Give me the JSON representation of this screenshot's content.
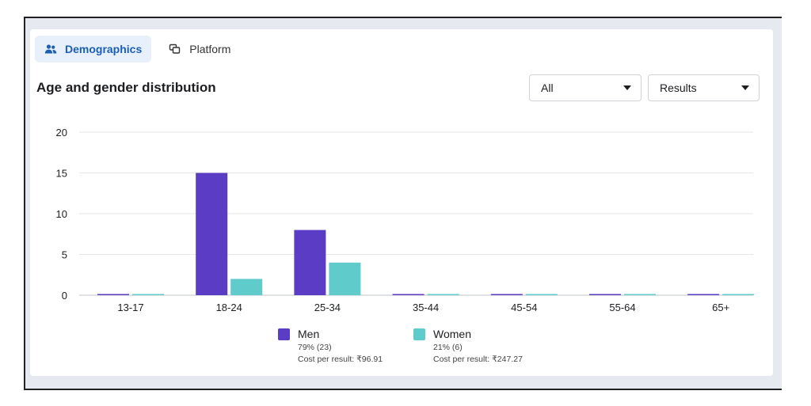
{
  "tabs": [
    {
      "label": "Demographics",
      "icon": "people-icon",
      "active": true
    },
    {
      "label": "Platform",
      "icon": "platform-icon",
      "active": false
    }
  ],
  "section_title": "Age and gender distribution",
  "filters": {
    "audience": {
      "selected": "All"
    },
    "metric": {
      "selected": "Results"
    }
  },
  "colors": {
    "men": "#5b3cc4",
    "women": "#5fcbcb",
    "grid": "#e4e6ea",
    "axis": "#bfc4ca"
  },
  "legend": [
    {
      "name": "Men",
      "share": "79% (23)",
      "cost": "Cost per result: ₹96.91"
    },
    {
      "name": "Women",
      "share": "21% (6)",
      "cost": "Cost per result: ₹247.27"
    }
  ],
  "chart_data": {
    "type": "bar",
    "title": "Age and gender distribution",
    "xlabel": "",
    "ylabel": "",
    "categories": [
      "13-17",
      "18-24",
      "25-34",
      "35-44",
      "45-54",
      "55-64",
      "65+"
    ],
    "series": [
      {
        "name": "Men",
        "values": [
          0,
          15,
          8,
          0,
          0,
          0,
          0
        ]
      },
      {
        "name": "Women",
        "values": [
          0,
          2,
          4,
          0,
          0,
          0,
          0
        ]
      }
    ],
    "ylim": [
      0,
      20
    ],
    "yticks": [
      0,
      5,
      10,
      15,
      20
    ],
    "grid": true,
    "legend_position": "bottom"
  }
}
